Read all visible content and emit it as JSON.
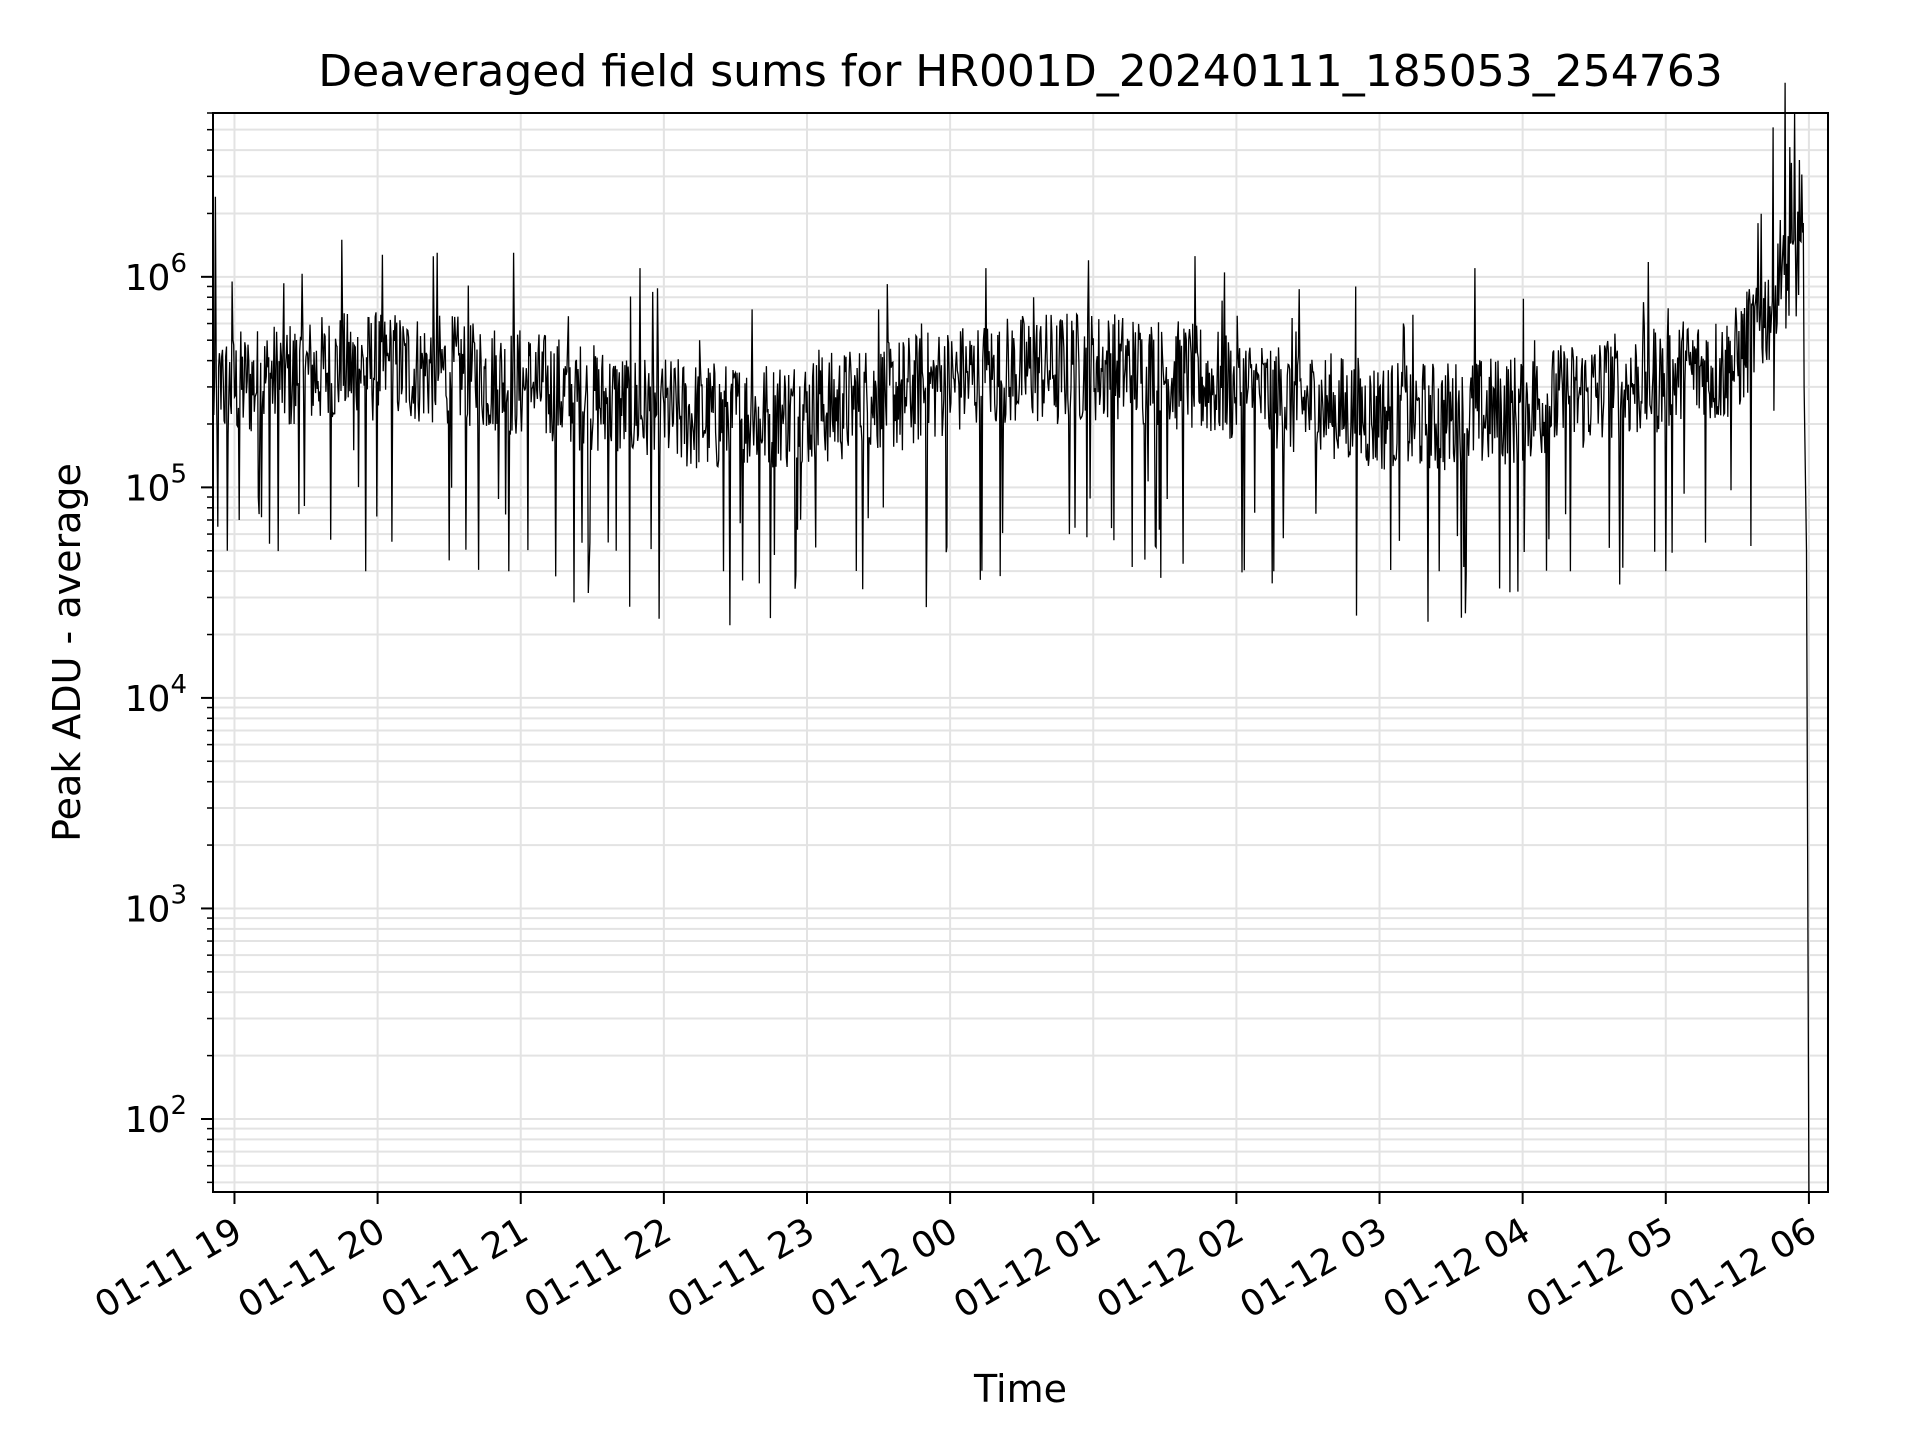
{
  "chart_data": {
    "type": "line",
    "title": "Deaveraged field sums for HR001D_20240111_185053_254763",
    "xlabel": "Time",
    "ylabel": "Peak ADU - average",
    "x_tick_labels": [
      "01-11 19",
      "01-11 20",
      "01-11 21",
      "01-11 22",
      "01-11 23",
      "01-12 00",
      "01-12 01",
      "01-12 02",
      "01-12 03",
      "01-12 04",
      "01-12 05",
      "01-12 06"
    ],
    "y_tick_labels": [
      {
        "base": "10",
        "exp": "2"
      },
      {
        "base": "10",
        "exp": "3"
      },
      {
        "base": "10",
        "exp": "4"
      },
      {
        "base": "10",
        "exp": "5"
      },
      {
        "base": "10",
        "exp": "6"
      }
    ],
    "y_scale": "log",
    "ylim": [
      45,
      6000000
    ],
    "xlim": [
      "2024-01-11 18:51",
      "2024-01-12 06:08"
    ],
    "grid": true,
    "series": [
      {
        "color": "#000000",
        "points": [
          [
            "2024-01-11 18:51",
            300000
          ],
          [
            "2024-01-11 18:52",
            2400000
          ],
          [
            "2024-01-11 18:53",
            65000
          ],
          [
            "2024-01-11 18:55",
            450000
          ],
          [
            "2024-01-11 18:57",
            50000
          ],
          [
            "2024-01-11 18:59",
            950000
          ],
          [
            "2024-01-11 19:02",
            70000
          ],
          [
            "2024-01-11 19:05",
            280000
          ],
          [
            "2024-01-11 19:10",
            90000
          ],
          [
            "2024-01-11 19:15",
            350000
          ],
          [
            "2024-01-11 19:25",
            200000
          ],
          [
            "2024-01-11 19:35",
            320000
          ],
          [
            "2024-01-11 19:45",
            1500000
          ],
          [
            "2024-01-11 19:50",
            150000
          ],
          [
            "2024-01-11 19:55",
            40000
          ],
          [
            "2024-01-11 20:05",
            400000
          ],
          [
            "2024-01-11 20:15",
            250000
          ],
          [
            "2024-01-11 20:25",
            1300000
          ],
          [
            "2024-01-11 20:30",
            45000
          ],
          [
            "2024-01-11 20:40",
            600000
          ],
          [
            "2024-01-11 20:50",
            200000
          ],
          [
            "2024-01-11 20:55",
            40000
          ],
          [
            "2024-01-11 20:57",
            1300000
          ],
          [
            "2024-01-11 21:05",
            300000
          ],
          [
            "2024-01-11 21:20",
            650000
          ],
          [
            "2024-01-11 21:30",
            180000
          ],
          [
            "2024-01-11 21:40",
            50000
          ],
          [
            "2024-01-11 21:50",
            1100000
          ],
          [
            "2024-01-11 22:00",
            250000
          ],
          [
            "2024-01-11 22:15",
            500000
          ],
          [
            "2024-01-11 22:25",
            40000
          ],
          [
            "2024-01-11 22:30",
            350000
          ],
          [
            "2024-01-11 22:37",
            700000
          ],
          [
            "2024-01-11 22:40",
            35000
          ],
          [
            "2024-01-11 22:50",
            200000
          ],
          [
            "2024-01-11 22:55",
            33000
          ],
          [
            "2024-01-11 23:05",
            450000
          ],
          [
            "2024-01-11 23:15",
            280000
          ],
          [
            "2024-01-11 23:30",
            700000
          ],
          [
            "2024-01-11 23:40",
            150000
          ],
          [
            "2024-01-11 23:48",
            600000
          ],
          [
            "2024-01-11 23:50",
            27000
          ],
          [
            "2024-01-11 23:55",
            400000
          ],
          [
            "2024-01-12 00:05",
            500000
          ],
          [
            "2024-01-12 00:15",
            1100000
          ],
          [
            "2024-01-12 00:25",
            300000
          ],
          [
            "2024-01-12 00:35",
            800000
          ],
          [
            "2024-01-12 00:45",
            200000
          ],
          [
            "2024-01-12 00:50",
            60000
          ],
          [
            "2024-01-12 00:58",
            1200000
          ],
          [
            "2024-01-12 01:10",
            400000
          ],
          [
            "2024-01-12 01:25",
            250000
          ],
          [
            "2024-01-12 01:40",
            500000
          ],
          [
            "2024-01-12 01:55",
            1050000
          ],
          [
            "2024-01-12 02:05",
            300000
          ],
          [
            "2024-01-12 02:15",
            35000
          ],
          [
            "2024-01-12 02:25",
            550000
          ],
          [
            "2024-01-12 02:40",
            200000
          ],
          [
            "2024-01-12 02:50",
            900000
          ],
          [
            "2024-01-12 03:00",
            300000
          ],
          [
            "2024-01-12 03:10",
            600000
          ],
          [
            "2024-01-12 03:25",
            40000
          ],
          [
            "2024-01-12 03:40",
            1100000
          ],
          [
            "2024-01-12 03:50",
            250000
          ],
          [
            "2024-01-12 03:58",
            32000
          ],
          [
            "2024-01-12 04:05",
            500000
          ],
          [
            "2024-01-12 04:20",
            40000
          ],
          [
            "2024-01-12 04:35",
            350000
          ],
          [
            "2024-01-12 04:50",
            250000
          ],
          [
            "2024-01-12 05:00",
            40000
          ],
          [
            "2024-01-12 05:10",
            380000
          ],
          [
            "2024-01-12 05:25",
            450000
          ],
          [
            "2024-01-12 05:35",
            650000
          ],
          [
            "2024-01-12 05:40",
            1200000
          ],
          [
            "2024-01-12 05:45",
            2500000
          ],
          [
            "2024-01-12 05:48",
            800000
          ],
          [
            "2024-01-12 05:50",
            3300000
          ],
          [
            "2024-01-12 05:52",
            1500000
          ],
          [
            "2024-01-12 05:54",
            2000000
          ],
          [
            "2024-01-12 05:56",
            1100000
          ],
          [
            "2024-01-12 05:57",
            900000
          ],
          [
            "2024-01-12 05:58",
            300000
          ],
          [
            "2024-01-12 05:59",
            50000
          ],
          [
            "2024-01-12 05:59:30",
            1500
          ],
          [
            "2024-01-12 06:00",
            45
          ]
        ]
      }
    ]
  }
}
